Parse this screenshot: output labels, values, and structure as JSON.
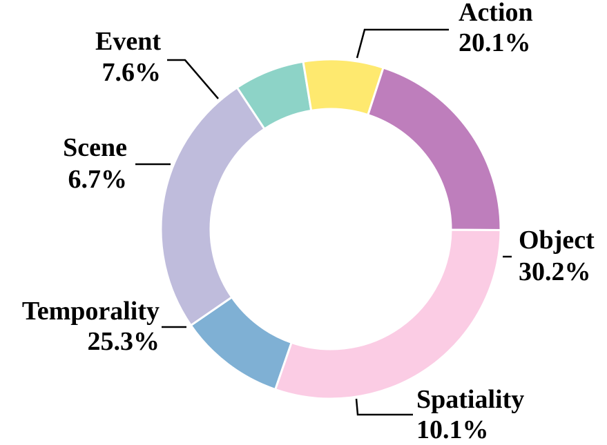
{
  "chart_data": {
    "type": "pie",
    "variant": "donut",
    "start_angle_deg": 72,
    "direction": "clockwise",
    "slices": [
      {
        "label": "Action",
        "value": 20.1,
        "value_label": "20.1%",
        "color": "#BE7EBC"
      },
      {
        "label": "Object",
        "value": 30.2,
        "value_label": "30.2%",
        "color": "#FBCCE4"
      },
      {
        "label": "Spatiality",
        "value": 10.1,
        "value_label": "10.1%",
        "color": "#7FB0D4"
      },
      {
        "label": "Temporality",
        "value": 25.3,
        "value_label": "25.3%",
        "color": "#BFBCDC"
      },
      {
        "label": "Scene",
        "value": 6.7,
        "value_label": "6.7%",
        "color": "#8DD3C7"
      },
      {
        "label": "Event",
        "value": 7.6,
        "value_label": "7.6%",
        "color": "#FEE96F"
      }
    ]
  }
}
